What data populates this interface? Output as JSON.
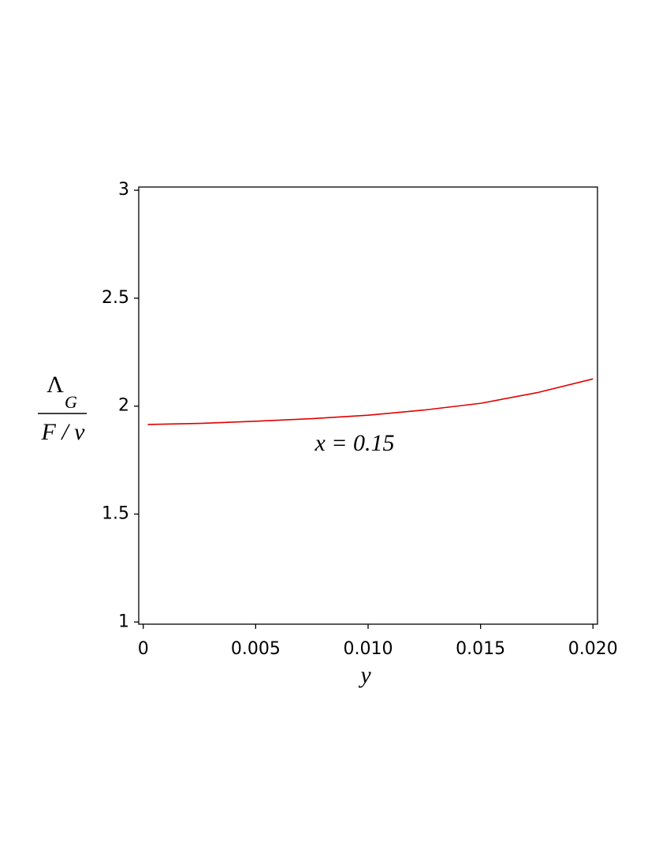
{
  "chart_data": {
    "type": "line",
    "x_label": "y",
    "y_label": {
      "numerator": "Λ",
      "subscript": "G",
      "denominator": "F / v"
    },
    "annotation": "x = 0.15",
    "x": [
      0.0002,
      0.0025,
      0.005,
      0.0075,
      0.01,
      0.0125,
      0.015,
      0.0175,
      0.02
    ],
    "series": [
      {
        "color": "#e00000",
        "values": [
          1.915,
          1.92,
          1.93,
          1.942,
          1.958,
          1.982,
          2.013,
          2.062,
          2.126
        ]
      }
    ],
    "xlim": [
      -0.0002,
      0.0202
    ],
    "ylim": [
      0.99,
      3.015
    ],
    "xticks": [
      0,
      {
        "value": 0.005,
        "label": "0.005"
      },
      {
        "value": 0.01,
        "label": "0.010"
      },
      {
        "value": 0.015,
        "label": "0.015"
      },
      {
        "value": 0.02,
        "label": "0.020"
      }
    ],
    "yticks": [
      1,
      1.5,
      2,
      2.5,
      3
    ]
  }
}
